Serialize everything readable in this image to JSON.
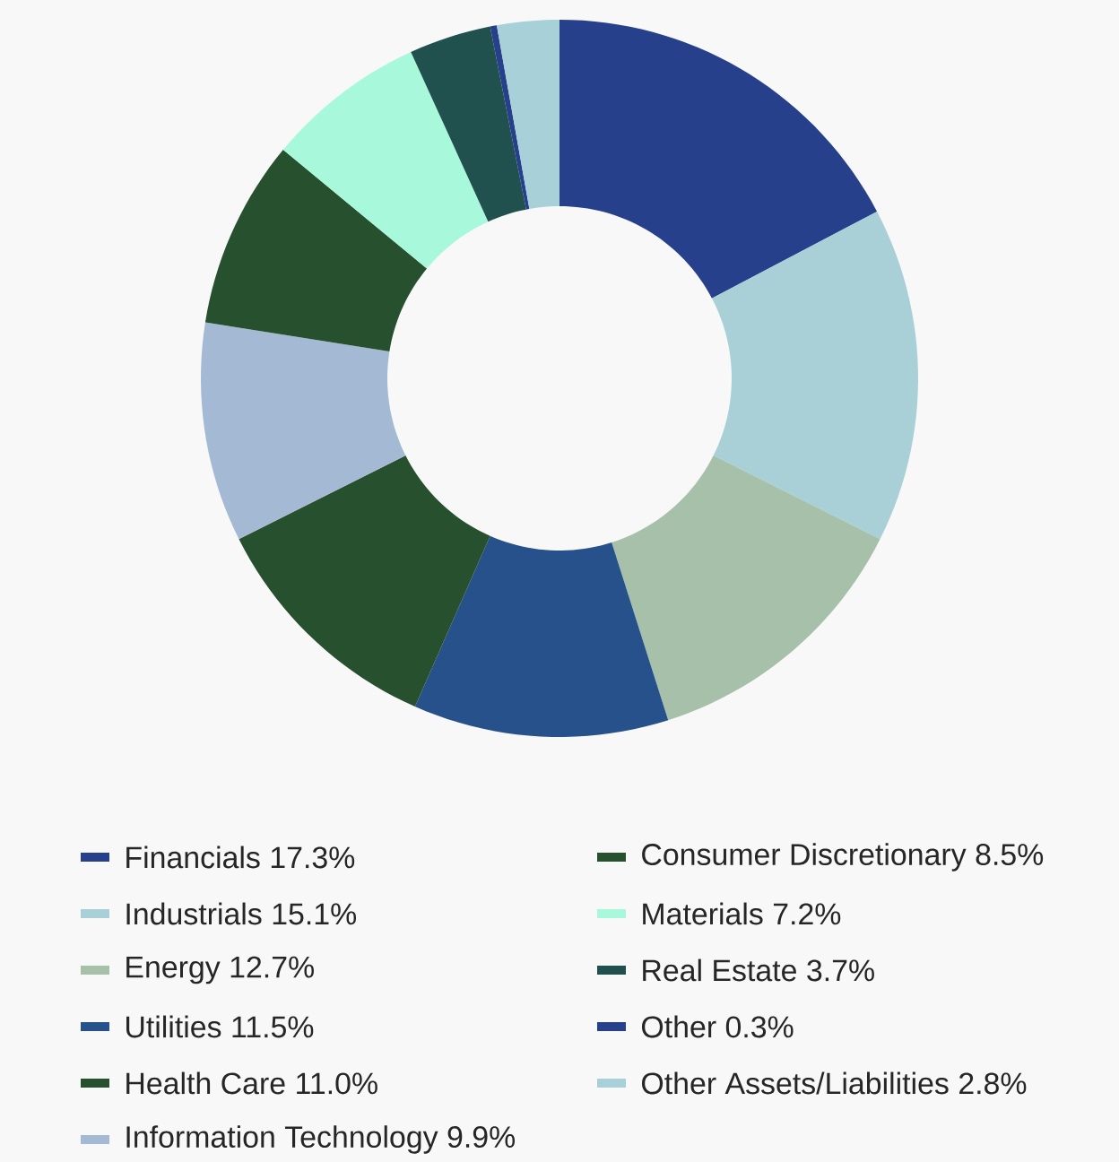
{
  "chart_data": {
    "type": "donut",
    "categories": [
      "Financials",
      "Industrials",
      "Energy",
      "Utilities",
      "Health Care",
      "Information Technology",
      "Consumer Discretionary",
      "Materials",
      "Real Estate",
      "Other",
      "Other Assets/Liabilities"
    ],
    "values": [
      17.3,
      15.1,
      12.7,
      11.5,
      11.0,
      9.9,
      8.5,
      7.2,
      3.7,
      0.3,
      2.8
    ],
    "value_labels": [
      "17.3%",
      "15.1%",
      "12.7%",
      "11.5%",
      "11.0%",
      "9.9%",
      "8.5%",
      "7.2%",
      "3.7%",
      "0.3%",
      "2.8%"
    ],
    "colors": [
      "#26408b",
      "#a8d0d6",
      "#a7c0aa",
      "#26518b",
      "#26502e",
      "#a4bad4",
      "#26502e",
      "#a8f8dc",
      "#21514e",
      "#26408b",
      "#a8d0d8"
    ],
    "legend": "bottom"
  }
}
